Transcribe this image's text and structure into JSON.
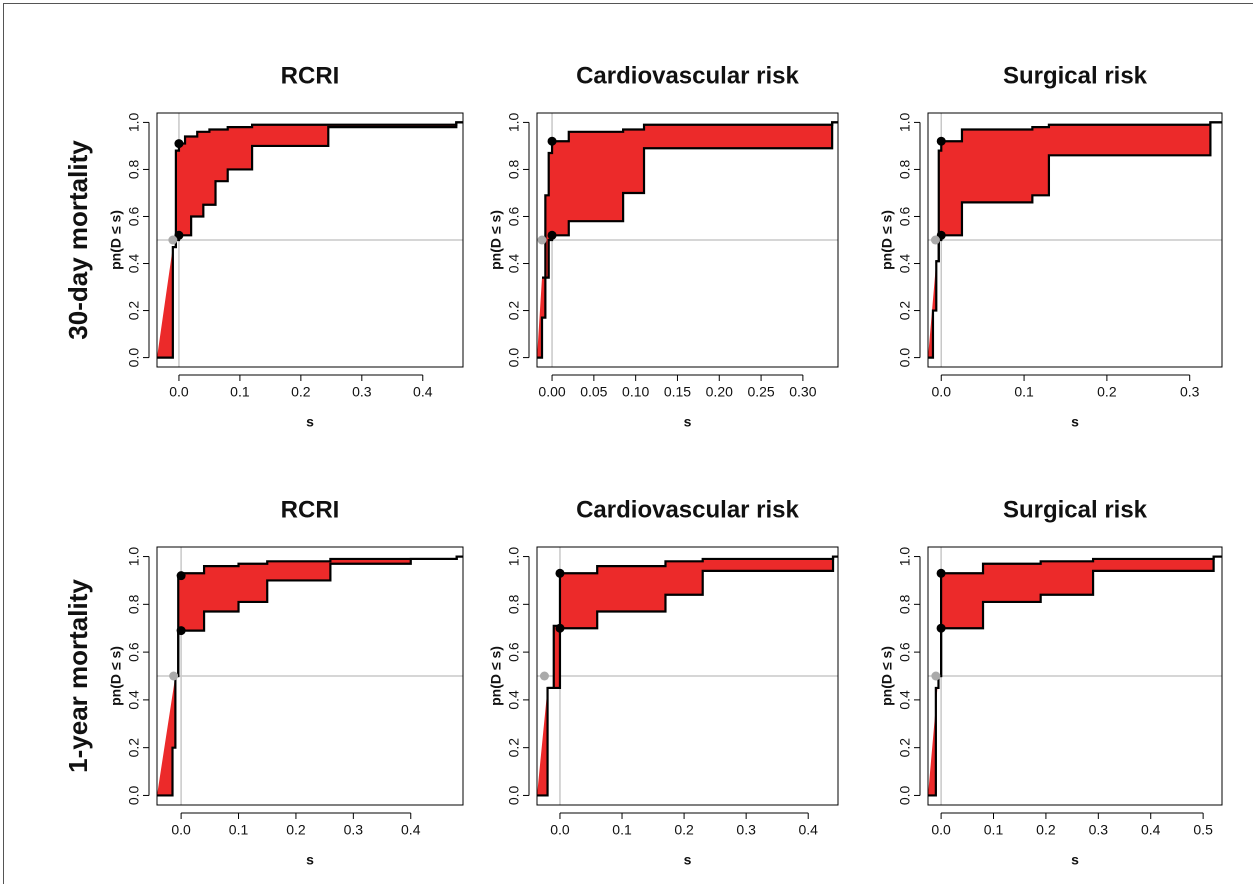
{
  "row_labels": [
    "30-day mortality",
    "1-year mortality"
  ],
  "chart_data": [
    {
      "type": "step",
      "title": "RCRI",
      "xlabel": "s",
      "ylabel": "pn(D ≤ s)",
      "xlim": [
        -0.036,
        0.466
      ],
      "ylim": [
        -0.04,
        1.04
      ],
      "xticks": [
        {
          "value": 0,
          "label": "0.0"
        },
        0.1,
        0.2,
        0.3,
        0.4
      ],
      "yticks": [
        {
          "value": 0,
          "label": "0.0"
        },
        0.2,
        0.4,
        0.6,
        0.8,
        {
          "value": 1,
          "label": "1.0"
        }
      ],
      "fill": "#ec2a2a",
      "line_color": "#000000",
      "hline": 0.5,
      "vline": 0,
      "series": [
        {
          "x": [
            -0.01,
            -0.005,
            0.0,
            0.01,
            0.03,
            0.05,
            0.08,
            0.12,
            0.245,
            0.455
          ],
          "values": [
            0.47,
            0.88,
            0.91,
            0.94,
            0.96,
            0.97,
            0.98,
            0.99,
            0.99,
            1.0
          ]
        },
        {
          "x": [
            -0.036,
            -0.01,
            -0.005,
            0.0,
            0.02,
            0.04,
            0.06,
            0.08,
            0.12,
            0.245,
            0.455
          ],
          "values": [
            0,
            0.47,
            0.5,
            0.52,
            0.6,
            0.65,
            0.75,
            0.8,
            0.9,
            0.98,
            1.0
          ]
        }
      ],
      "points": {
        "x": [
          0,
          0,
          -0.01
        ],
        "y": [
          0.91,
          0.52,
          0.5
        ],
        "colors": [
          "#000000",
          "#000000",
          "#aaaaaa"
        ]
      }
    },
    {
      "type": "step",
      "title": "Cardiovascular risk",
      "xlabel": "s",
      "ylabel": "pn(D ≤ s)",
      "xlim": [
        -0.018,
        0.342
      ],
      "ylim": [
        -0.04,
        1.04
      ],
      "xticks": [
        {
          "value": 0,
          "label": "0.00"
        },
        0.05,
        {
          "value": 0.1,
          "label": "0.10"
        },
        0.15,
        {
          "value": 0.2,
          "label": "0.20"
        },
        0.25,
        {
          "value": 0.3,
          "label": "0.30"
        }
      ],
      "yticks": [
        {
          "value": 0,
          "label": "0.0"
        },
        0.2,
        0.4,
        0.6,
        0.8,
        {
          "value": 1,
          "label": "1.0"
        }
      ],
      "fill": "#ec2a2a",
      "line_color": "#000000",
      "hline": 0.5,
      "vline": 0,
      "series": [
        {
          "x": [
            -0.012,
            -0.008,
            -0.004,
            0.0,
            0.02,
            0.085,
            0.11,
            0.335
          ],
          "values": [
            0.34,
            0.69,
            0.87,
            0.92,
            0.96,
            0.97,
            0.99,
            1.0
          ]
        },
        {
          "x": [
            -0.018,
            -0.012,
            -0.008,
            -0.004,
            0.0,
            0.02,
            0.085,
            0.11,
            0.335
          ],
          "values": [
            0,
            0.17,
            0.34,
            0.5,
            0.52,
            0.58,
            0.7,
            0.89,
            1.0
          ]
        }
      ],
      "points": {
        "x": [
          0,
          0,
          -0.012
        ],
        "y": [
          0.92,
          0.52,
          0.5
        ],
        "colors": [
          "#000000",
          "#000000",
          "#aaaaaa"
        ]
      }
    },
    {
      "type": "step",
      "title": "Surgical risk",
      "xlabel": "s",
      "ylabel": "pn(D ≤ s)",
      "xlim": [
        -0.016,
        0.339
      ],
      "ylim": [
        -0.04,
        1.04
      ],
      "xticks": [
        {
          "value": 0,
          "label": "0.0"
        },
        0.1,
        0.2,
        0.3
      ],
      "yticks": [
        {
          "value": 0,
          "label": "0.0"
        },
        0.2,
        0.4,
        0.6,
        0.8,
        {
          "value": 1,
          "label": "1.0"
        }
      ],
      "fill": "#ec2a2a",
      "line_color": "#000000",
      "hline": 0.5,
      "vline": 0,
      "series": [
        {
          "x": [
            -0.006,
            -0.003,
            0.0,
            0.025,
            0.11,
            0.13,
            0.325
          ],
          "values": [
            0.41,
            0.88,
            0.92,
            0.97,
            0.98,
            0.99,
            1.0
          ]
        },
        {
          "x": [
            -0.016,
            -0.01,
            -0.006,
            -0.003,
            0.0,
            0.025,
            0.11,
            0.13,
            0.325
          ],
          "values": [
            0,
            0.2,
            0.41,
            0.5,
            0.52,
            0.66,
            0.69,
            0.86,
            1.0
          ]
        }
      ],
      "points": {
        "x": [
          0,
          0,
          -0.007
        ],
        "y": [
          0.92,
          0.52,
          0.5
        ],
        "colors": [
          "#000000",
          "#000000",
          "#aaaaaa"
        ]
      }
    },
    {
      "type": "step",
      "title": "RCRI",
      "xlabel": "s",
      "ylabel": "pn(D ≤ s)",
      "xlim": [
        -0.042,
        0.491
      ],
      "ylim": [
        -0.04,
        1.04
      ],
      "xticks": [
        {
          "value": 0,
          "label": "0.0"
        },
        0.1,
        0.2,
        0.3,
        0.4
      ],
      "yticks": [
        {
          "value": 0,
          "label": "0.0"
        },
        0.2,
        0.4,
        0.6,
        0.8,
        {
          "value": 1,
          "label": "1.0"
        }
      ],
      "fill": "#ec2a2a",
      "line_color": "#000000",
      "hline": 0.5,
      "vline": 0,
      "series": [
        {
          "x": [
            -0.01,
            -0.005,
            0.0,
            0.04,
            0.1,
            0.15,
            0.26,
            0.4,
            0.48
          ],
          "values": [
            0.5,
            0.91,
            0.93,
            0.96,
            0.97,
            0.98,
            0.99,
            0.99,
            1.0
          ]
        },
        {
          "x": [
            -0.042,
            -0.015,
            -0.01,
            -0.005,
            0.0,
            0.04,
            0.1,
            0.15,
            0.26,
            0.4,
            0.48
          ],
          "values": [
            0,
            0.2,
            0.5,
            0.68,
            0.69,
            0.77,
            0.81,
            0.9,
            0.97,
            0.99,
            1.0
          ]
        }
      ],
      "points": {
        "x": [
          0,
          0,
          -0.013
        ],
        "y": [
          0.92,
          0.69,
          0.5
        ],
        "colors": [
          "#000000",
          "#000000",
          "#aaaaaa"
        ]
      }
    },
    {
      "type": "step",
      "title": "Cardiovascular risk",
      "xlabel": "s",
      "ylabel": "pn(D ≤ s)",
      "xlim": [
        -0.037,
        0.448
      ],
      "ylim": [
        -0.04,
        1.04
      ],
      "xticks": [
        {
          "value": 0,
          "label": "0.0"
        },
        0.1,
        0.2,
        0.3,
        0.4
      ],
      "yticks": [
        {
          "value": 0,
          "label": "0.0"
        },
        0.2,
        0.4,
        0.6,
        0.8,
        {
          "value": 1,
          "label": "1.0"
        }
      ],
      "fill": "#ec2a2a",
      "line_color": "#000000",
      "hline": 0.5,
      "vline": 0,
      "series": [
        {
          "x": [
            -0.02,
            -0.01,
            0.0,
            0.06,
            0.17,
            0.23,
            0.44
          ],
          "values": [
            0.45,
            0.71,
            0.93,
            0.96,
            0.98,
            0.99,
            1.0
          ]
        },
        {
          "x": [
            -0.037,
            -0.02,
            0.0,
            0.06,
            0.17,
            0.23,
            0.44
          ],
          "values": [
            0,
            0.45,
            0.7,
            0.77,
            0.84,
            0.94,
            1.0
          ]
        }
      ],
      "points": {
        "x": [
          0,
          0,
          -0.025
        ],
        "y": [
          0.93,
          0.7,
          0.5
        ],
        "colors": [
          "#000000",
          "#000000",
          "#aaaaaa"
        ]
      }
    },
    {
      "type": "step",
      "title": "Surgical risk",
      "xlabel": "s",
      "ylabel": "pn(D ≤ s)",
      "xlim": [
        -0.025,
        0.536
      ],
      "ylim": [
        -0.04,
        1.04
      ],
      "xticks": [
        {
          "value": 0,
          "label": "0.0"
        },
        0.1,
        0.2,
        0.3,
        0.4,
        0.5
      ],
      "yticks": [
        {
          "value": 0,
          "label": "0.0"
        },
        0.2,
        0.4,
        0.6,
        0.8,
        {
          "value": 1,
          "label": "1.0"
        }
      ],
      "fill": "#ec2a2a",
      "line_color": "#000000",
      "hline": 0.5,
      "vline": 0,
      "series": [
        {
          "x": [
            -0.005,
            0.0,
            0.08,
            0.19,
            0.29,
            0.52
          ],
          "values": [
            0.5,
            0.93,
            0.97,
            0.98,
            0.99,
            1.0
          ]
        },
        {
          "x": [
            -0.025,
            -0.01,
            -0.005,
            0.0,
            0.08,
            0.19,
            0.29,
            0.52
          ],
          "values": [
            0,
            0.45,
            0.5,
            0.7,
            0.81,
            0.84,
            0.94,
            1.0
          ]
        }
      ],
      "points": {
        "x": [
          0,
          0,
          -0.01
        ],
        "y": [
          0.93,
          0.7,
          0.5
        ],
        "colors": [
          "#000000",
          "#000000",
          "#aaaaaa"
        ]
      }
    }
  ]
}
